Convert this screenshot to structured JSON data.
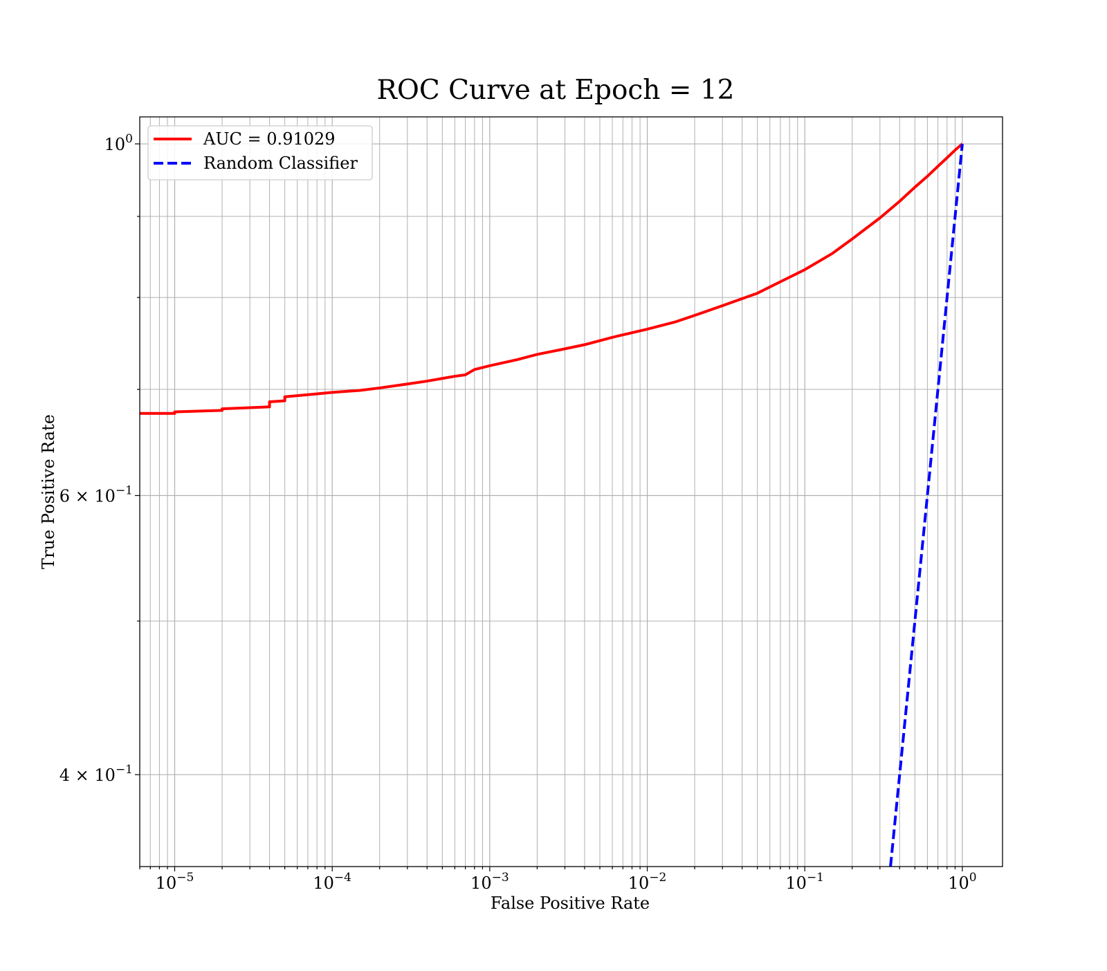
{
  "chart_data": {
    "type": "line",
    "title": "ROC Curve at Epoch = 12",
    "xlabel": "False Positive Rate",
    "ylabel": "True Positive Rate",
    "xscale": "log",
    "yscale": "log",
    "xlim": [
      6e-06,
      1.8
    ],
    "ylim": [
      0.35,
      1.04
    ],
    "grid": "both-major-and-minor",
    "legend_position": "upper-left",
    "x_ticks": [
      {
        "value": 1e-05,
        "base": "10",
        "exp": "−5"
      },
      {
        "value": 0.0001,
        "base": "10",
        "exp": "−4"
      },
      {
        "value": 0.001,
        "base": "10",
        "exp": "−3"
      },
      {
        "value": 0.01,
        "base": "10",
        "exp": "−2"
      },
      {
        "value": 0.1,
        "base": "10",
        "exp": "−1"
      },
      {
        "value": 1,
        "base": "10",
        "exp": "0"
      }
    ],
    "y_ticks": [
      {
        "value": 0.4,
        "base": "4 × 10",
        "exp": "−1"
      },
      {
        "value": 0.6,
        "base": "6 × 10",
        "exp": "−1"
      },
      {
        "value": 1.0,
        "base": "10",
        "exp": "0"
      }
    ],
    "y_minor_ticks": [
      0.5,
      0.7,
      0.8,
      0.9
    ],
    "series": [
      {
        "name": "AUC = 0.91029",
        "color": "#ff0000",
        "dash": "solid",
        "points": [
          [
            6e-06,
            0.676
          ],
          [
            1e-05,
            0.676
          ],
          [
            1e-05,
            0.6775
          ],
          [
            2e-05,
            0.679
          ],
          [
            2e-05,
            0.6805
          ],
          [
            4e-05,
            0.6825
          ],
          [
            4e-05,
            0.6875
          ],
          [
            5e-05,
            0.6885
          ],
          [
            5e-05,
            0.6925
          ],
          [
            8e-05,
            0.6955
          ],
          [
            0.0001,
            0.697
          ],
          [
            0.00015,
            0.699
          ],
          [
            0.0002,
            0.7015
          ],
          [
            0.0003,
            0.7055
          ],
          [
            0.0004,
            0.7085
          ],
          [
            0.0006,
            0.7135
          ],
          [
            0.0007,
            0.715
          ],
          [
            0.0008,
            0.7205
          ],
          [
            0.001,
            0.7245
          ],
          [
            0.0015,
            0.731
          ],
          [
            0.002,
            0.7365
          ],
          [
            0.003,
            0.7425
          ],
          [
            0.004,
            0.747
          ],
          [
            0.006,
            0.755
          ],
          [
            0.01,
            0.764
          ],
          [
            0.015,
            0.772
          ],
          [
            0.02,
            0.7795
          ],
          [
            0.03,
            0.7905
          ],
          [
            0.05,
            0.805
          ],
          [
            0.07,
            0.8185
          ],
          [
            0.1,
            0.833
          ],
          [
            0.15,
            0.853
          ],
          [
            0.2,
            0.871
          ],
          [
            0.3,
            0.898
          ],
          [
            0.4,
            0.92
          ],
          [
            0.5,
            0.939
          ],
          [
            0.6,
            0.954
          ],
          [
            0.7,
            0.968
          ],
          [
            0.8,
            0.98
          ],
          [
            0.9,
            0.991
          ],
          [
            1,
            1.0
          ]
        ]
      },
      {
        "name": "Random Classifier",
        "color": "#0000ff",
        "dash": "dashed",
        "points": [
          [
            0.35,
            0.35
          ],
          [
            1,
            1
          ]
        ]
      }
    ]
  }
}
